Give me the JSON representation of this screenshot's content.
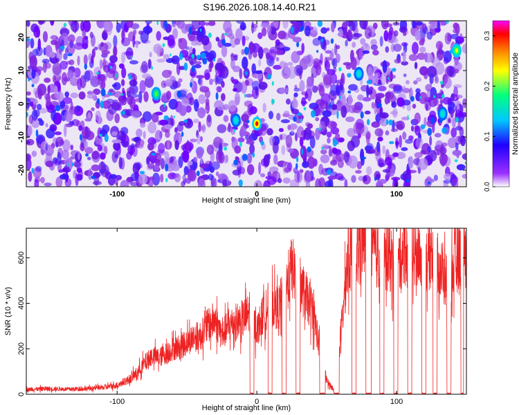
{
  "title": "S196.2026.108.14.40.R21",
  "chart_data": [
    {
      "type": "heatmap",
      "xlabel": "Height of straight line (km)",
      "ylabel": "Frequency (Hz)",
      "xlim": [
        -165,
        150
      ],
      "ylim": [
        -25,
        25
      ],
      "x_ticks": [
        -100,
        0,
        100
      ],
      "y_ticks": [
        -20,
        -10,
        0,
        10,
        20
      ],
      "colorbar": {
        "label": "Normalized spectral amplitude",
        "range": [
          0.0,
          0.33
        ],
        "ticks": [
          0.0,
          0.1,
          0.2,
          0.3
        ],
        "colormap": [
          "#ffffff",
          "#9b30ff",
          "#5a00ff",
          "#0000ff",
          "#00c8ff",
          "#00ff80",
          "#ffff00",
          "#ff8000",
          "#ff0000",
          "#ff00ff"
        ]
      },
      "hotspots": [
        {
          "x": 0,
          "y": -6,
          "amplitude": 0.33
        },
        {
          "x": 143,
          "y": 16,
          "amplitude": 0.27
        },
        {
          "x": -72,
          "y": 3,
          "amplitude": 0.18
        },
        {
          "x": -15,
          "y": -5,
          "amplitude": 0.15
        },
        {
          "x": 73,
          "y": 9,
          "amplitude": 0.12
        },
        {
          "x": 133,
          "y": -3,
          "amplitude": 0.11
        }
      ]
    },
    {
      "type": "line",
      "xlabel": "Height of straight line (km)",
      "ylabel": "SNR (10 * v/v)",
      "xlim": [
        -165,
        150
      ],
      "ylim": [
        0,
        730
      ],
      "x_ticks": [
        -100,
        0,
        100
      ],
      "y_ticks": [
        0,
        200,
        400,
        600
      ],
      "series": [
        {
          "color": "#ee2222",
          "x": [
            -165,
            -150,
            -135,
            -120,
            -110,
            -100,
            -95,
            -90,
            -85,
            -80,
            -75,
            -70,
            -65,
            -60,
            -55,
            -50,
            -45,
            -40,
            -35,
            -30,
            -25,
            -20,
            -15,
            -10,
            -5,
            0,
            5,
            10,
            15,
            20,
            25,
            30,
            35,
            40,
            45,
            50,
            55,
            60,
            65,
            70,
            75,
            80,
            85,
            90,
            95,
            100,
            105,
            110,
            115,
            120,
            125,
            130,
            135,
            140,
            145,
            150
          ],
          "y": [
            20,
            25,
            22,
            25,
            30,
            40,
            55,
            70,
            100,
            140,
            170,
            160,
            180,
            200,
            210,
            230,
            250,
            260,
            300,
            330,
            260,
            300,
            320,
            330,
            360,
            280,
            360,
            400,
            380,
            450,
            560,
            500,
            420,
            380,
            200,
            60,
            20,
            260,
            580,
            620,
            680,
            660,
            620,
            590,
            600,
            560,
            640,
            600,
            610,
            580,
            620,
            570,
            500,
            540,
            620,
            580
          ]
        }
      ],
      "dropouts": [
        [
          -5,
          -2
        ],
        [
          8,
          11
        ],
        [
          18,
          21
        ],
        [
          28,
          31
        ],
        [
          45,
          49
        ],
        [
          55,
          59
        ],
        [
          68,
          71
        ],
        [
          78,
          82
        ],
        [
          88,
          91
        ],
        [
          98,
          101
        ],
        [
          108,
          111
        ],
        [
          118,
          121
        ],
        [
          126,
          129
        ],
        [
          136,
          139
        ],
        [
          146,
          148
        ]
      ]
    }
  ]
}
